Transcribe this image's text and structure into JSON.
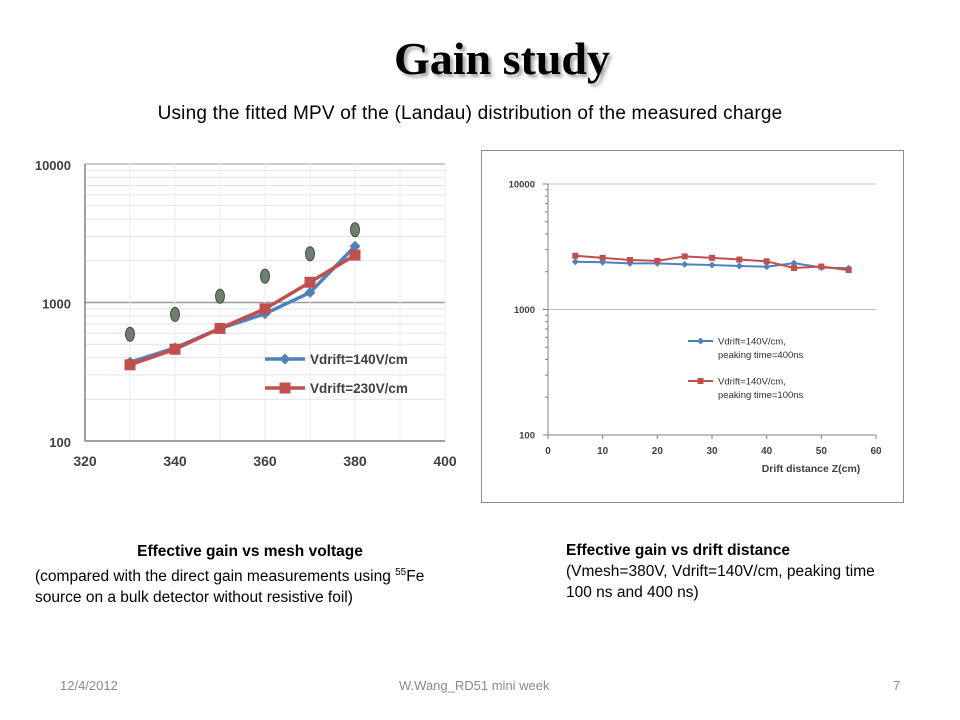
{
  "slide": {
    "title": "Gain study",
    "subtitle": "Using the fitted MPV of the (Landau) distribution of the measured charge",
    "caption_left": {
      "heading": "Effective gain vs mesh voltage",
      "text_before_sup": "(compared with the direct gain measurements using ",
      "superscript": "55",
      "text_after_sup": "Fe source on a bulk detector without resistive foil)"
    },
    "caption_right": {
      "heading": "Effective gain vs drift distance",
      "text": "(Vmesh=380V, Vdrift=140V/cm, peaking time 100 ns and 400 ns)"
    },
    "footer": {
      "date": "12/4/2012",
      "center": "W.Wang_RD51 mini week",
      "page": "7"
    }
  },
  "colors": {
    "blue": "#4f81bd",
    "red": "#c0504d",
    "gray_marker": "#6f7f6f",
    "grid": "#bfbfbf"
  },
  "chart_data": [
    {
      "type": "line",
      "log_y": true,
      "xlim": [
        320,
        400
      ],
      "ylim": [
        100,
        10000
      ],
      "xticks": [
        "320",
        "340",
        "360",
        "380",
        "400"
      ],
      "yticks": [
        "100",
        "1000",
        "10000"
      ],
      "grid": true,
      "legend_position": "right",
      "series": [
        {
          "name": "Vdrift=140V/cm",
          "color": "#4f81bd",
          "marker": "diamond",
          "x": [
            330,
            340,
            350,
            360,
            370,
            380
          ],
          "y": [
            370,
            470,
            650,
            830,
            1180,
            2550
          ]
        },
        {
          "name": "Vdrift=230V/cm",
          "color": "#c0504d",
          "marker": "square",
          "x": [
            330,
            340,
            350,
            360,
            370,
            380
          ],
          "y": [
            355,
            460,
            650,
            900,
            1400,
            2200
          ]
        }
      ],
      "extra_points": {
        "marker": "oval",
        "color": "#6f7f6f",
        "x": [
          330,
          340,
          350,
          360,
          370,
          380
        ],
        "y": [
          590,
          820,
          1110,
          1550,
          2250,
          3350
        ]
      }
    },
    {
      "type": "line",
      "log_y": true,
      "xlim": [
        0,
        60
      ],
      "ylim": [
        100,
        10000
      ],
      "xticks": [
        "0",
        "10",
        "20",
        "30",
        "40",
        "50",
        "60"
      ],
      "yticks": [
        "100",
        "1000",
        "10000"
      ],
      "xlabel": "Drift distance Z(cm)",
      "legend_position": "inside-lower-center",
      "series": [
        {
          "name": "Vdrift=140V/cm, peaking time=400ns",
          "legend_lines": [
            "Vdrift=140V/cm,",
            "peaking time=400ns"
          ],
          "color": "#4f81bd",
          "marker": "diamond",
          "x": [
            5,
            10,
            15,
            20,
            25,
            30,
            35,
            40,
            45,
            50,
            55
          ],
          "y": [
            2400,
            2380,
            2330,
            2330,
            2290,
            2260,
            2220,
            2190,
            2340,
            2160,
            2130
          ]
        },
        {
          "name": "Vdrift=140V/cm, peaking time=100ns",
          "legend_lines": [
            "Vdrift=140V/cm,",
            "peaking time=100ns"
          ],
          "color": "#c0504d",
          "marker": "square",
          "x": [
            5,
            10,
            15,
            20,
            25,
            30,
            35,
            40,
            45,
            50,
            55
          ],
          "y": [
            2680,
            2580,
            2480,
            2440,
            2650,
            2580,
            2500,
            2420,
            2140,
            2200,
            2060
          ]
        }
      ]
    }
  ]
}
